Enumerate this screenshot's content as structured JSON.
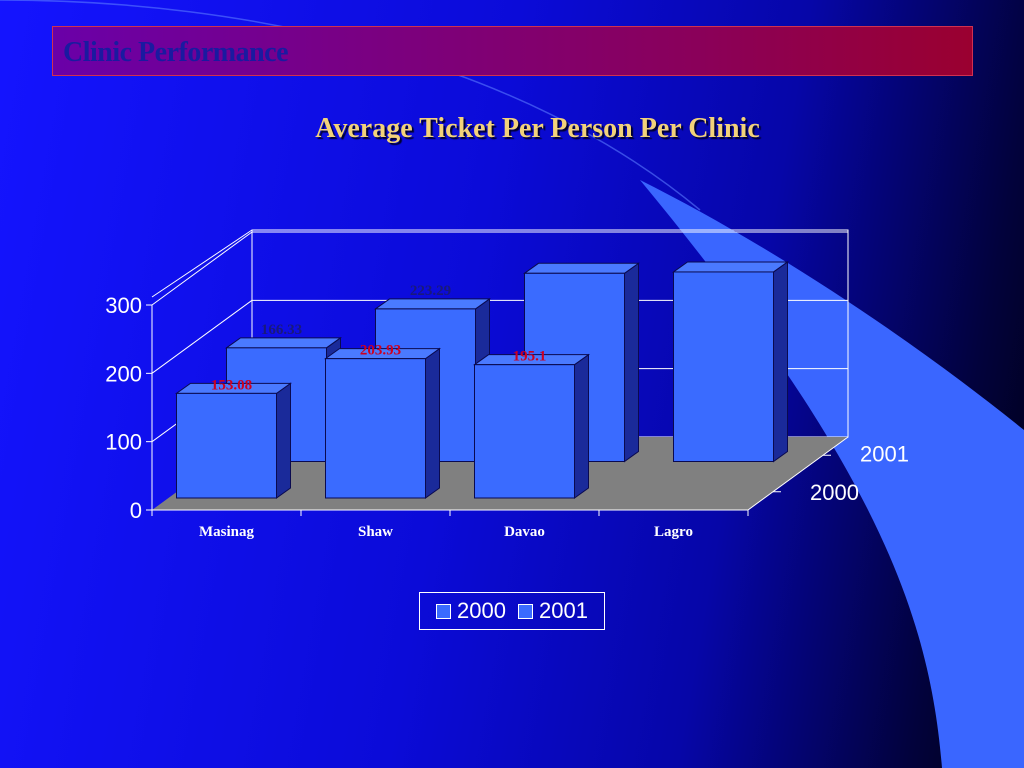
{
  "header": {
    "title": "Clinic Performance"
  },
  "colors": {
    "bar_front": "#3a6bff",
    "bar_top": "#4a7aff",
    "bar_side": "#1a2a9a",
    "floor": "#808080",
    "header_text": "#1a1aa0",
    "chart_title": "#f2d27a",
    "label_2000": "#cc0022",
    "label_2001": "#1a1a7a"
  },
  "chart_data": {
    "type": "bar",
    "title": "Average Ticket Per Person Per Clinic",
    "categories": [
      "Masinag",
      "Shaw",
      "Davao",
      "Lagro"
    ],
    "series": [
      {
        "name": "2000",
        "values": [
          153.08,
          203.93,
          195.1,
          null
        ],
        "labels": [
          "153.08",
          "203.93",
          "195.1",
          ""
        ]
      },
      {
        "name": "2001",
        "values": [
          166.33,
          223.29,
          275.4,
          277.4
        ],
        "labels": [
          "166.33",
          "223.29",
          "",
          ""
        ]
      }
    ],
    "ylim": [
      0,
      300
    ],
    "yticks": [
      "0",
      "100",
      "200",
      "300"
    ],
    "depth_labels": [
      "2000",
      "2001"
    ],
    "legend": {
      "position": "bottom",
      "items": [
        "2000",
        "2001"
      ]
    }
  }
}
